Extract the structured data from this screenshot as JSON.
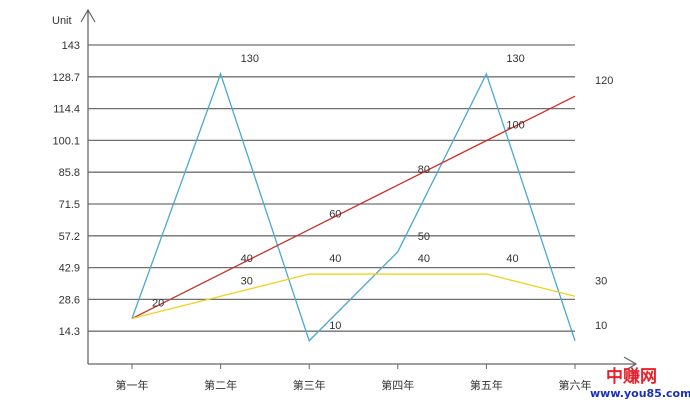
{
  "chart_data": {
    "type": "line",
    "ylabel": "Unit",
    "categories": [
      "第一年",
      "第二年",
      "第三年",
      "第四年",
      "第五年",
      "第六年"
    ],
    "yticks": [
      14.3,
      28.6,
      42.9,
      57.2,
      71.5,
      85.8,
      100.1,
      114.4,
      128.7,
      143
    ],
    "ylim": [
      0,
      143
    ],
    "grid": true,
    "series": [
      {
        "color": "#4aa9d2",
        "values": [
          20,
          130,
          10,
          50,
          130,
          10
        ]
      },
      {
        "color": "#c8302a",
        "values": [
          20,
          40,
          60,
          80,
          100,
          120
        ]
      },
      {
        "color": "#f2d21e",
        "values": [
          20,
          30,
          40,
          40,
          40,
          30
        ]
      }
    ]
  },
  "watermark": {
    "line1": "中赚网",
    "line2": "www.you85.com"
  }
}
